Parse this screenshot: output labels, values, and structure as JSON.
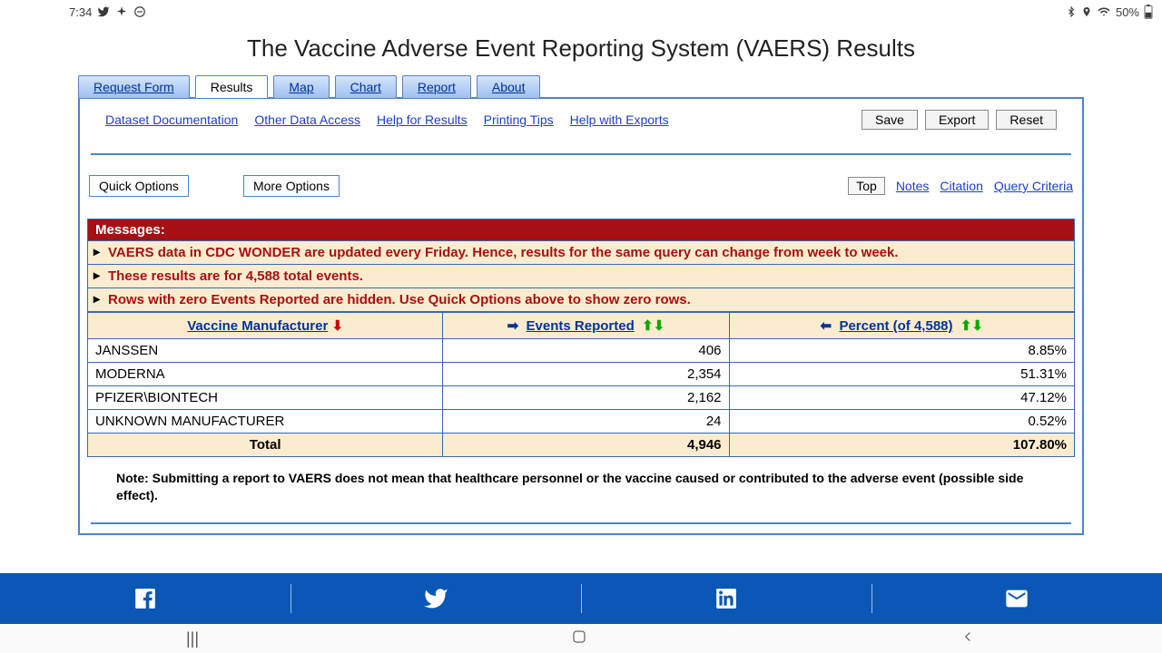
{
  "status": {
    "time": "7:34",
    "battery": "50%"
  },
  "page": {
    "title": "The Vaccine Adverse Event Reporting System (VAERS) Results"
  },
  "tabs": {
    "request": "Request Form",
    "results": "Results",
    "map": "Map",
    "chart": "Chart",
    "report": "Report",
    "about": "About"
  },
  "links": {
    "dataset": "Dataset Documentation",
    "other": "Other Data Access",
    "help": "Help for Results",
    "printing": "Printing Tips",
    "exports": "Help with Exports"
  },
  "buttons": {
    "save": "Save",
    "export": "Export",
    "reset": "Reset",
    "quick": "Quick Options",
    "more": "More Options",
    "top": "Top"
  },
  "nav": {
    "notes": "Notes",
    "citation": "Citation",
    "criteria": "Query Criteria"
  },
  "messages": {
    "header": "Messages:",
    "m1": "VAERS data in CDC WONDER are updated every Friday. Hence, results for the same query can change from week to week.",
    "m2": "These results are for 4,588 total events.",
    "m3": "Rows with zero Events Reported are hidden. Use Quick Options above to show zero rows."
  },
  "table": {
    "col1": "Vaccine Manufacturer",
    "col2": "Events Reported",
    "col3": "Percent (of 4,588)",
    "rows": [
      {
        "label": "JANSSEN",
        "events": "406",
        "pct": "8.85%"
      },
      {
        "label": "MODERNA",
        "events": "2,354",
        "pct": "51.31%"
      },
      {
        "label": "PFIZER\\BIONTECH",
        "events": "2,162",
        "pct": "47.12%"
      },
      {
        "label": "UNKNOWN MANUFACTURER",
        "events": "24",
        "pct": "0.52%"
      }
    ],
    "total": {
      "label": "Total",
      "events": "4,946",
      "pct": "107.80%"
    }
  },
  "note": "Note: Submitting a report to VAERS does not mean that healthcare personnel or the vaccine caused or contributed to the adverse event (possible side effect)."
}
